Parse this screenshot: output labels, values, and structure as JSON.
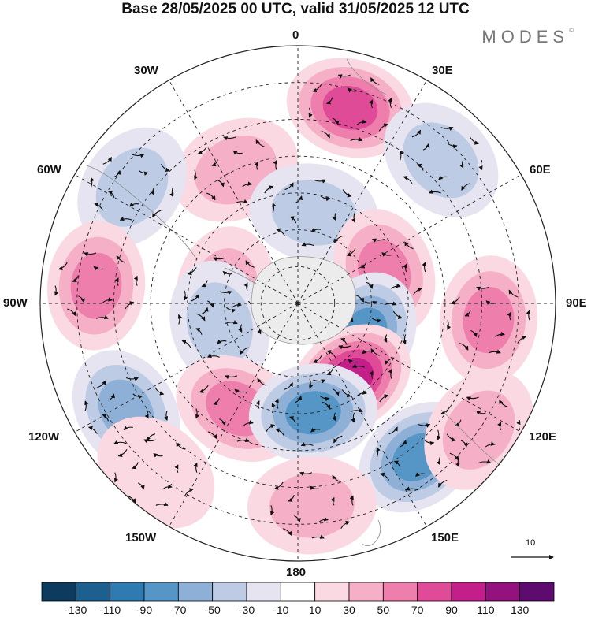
{
  "title": "Base 28/05/2025 00 UTC, valid 31/05/2025 12 UTC",
  "logo_text": "MODES",
  "logo_mark": "©",
  "longitude_labels": {
    "lon_0": "0",
    "lon_30e": "30E",
    "lon_60e": "60E",
    "lon_90e": "90E",
    "lon_120e": "120E",
    "lon_150e": "150E",
    "lon_180": "180",
    "lon_150w": "150W",
    "lon_120w": "120W",
    "lon_90w": "90W",
    "lon_60w": "60W",
    "lon_30w": "30W"
  },
  "reference_vector": {
    "label": "10",
    "value": 10
  },
  "colorbar": {
    "colors": [
      "#0d3b5e",
      "#1d5f8e",
      "#2f7ab0",
      "#5596c6",
      "#8eb0d6",
      "#bdcbe4",
      "#e6e4f0",
      "#ffffff",
      "#fad9e2",
      "#f5afc6",
      "#ee7fac",
      "#e04b98",
      "#c41e8a",
      "#94127d",
      "#5d0b6f"
    ],
    "ticks": [
      "-130",
      "-110",
      "-90",
      "-70",
      "-50",
      "-30",
      "-10",
      "10",
      "30",
      "50",
      "70",
      "90",
      "110",
      "130"
    ]
  },
  "anomaly_centers": [
    {
      "lon": 15,
      "colat": 55,
      "value": 85
    },
    {
      "lon": 45,
      "colat": 55,
      "value": -50
    },
    {
      "lon": -25,
      "colat": 40,
      "value": 55
    },
    {
      "lon": 10,
      "colat": 25,
      "value": -50
    },
    {
      "lon": -55,
      "colat": 55,
      "value": -50
    },
    {
      "lon": 70,
      "colat": 25,
      "value": 70
    },
    {
      "lon": -85,
      "colat": 55,
      "value": 75
    },
    {
      "lon": -80,
      "colat": 20,
      "value": 40
    },
    {
      "lon": -105,
      "colat": 22,
      "value": -50
    },
    {
      "lon": 115,
      "colat": 20,
      "value": -85
    },
    {
      "lon": 95,
      "colat": 52,
      "value": 60
    },
    {
      "lon": 145,
      "colat": 25,
      "value": 115
    },
    {
      "lon": -150,
      "colat": 33,
      "value": 75
    },
    {
      "lon": 172,
      "colat": 30,
      "value": -95
    },
    {
      "lon": -122,
      "colat": 55,
      "value": -70
    },
    {
      "lon": 142,
      "colat": 53,
      "value": -80
    },
    {
      "lon": 176,
      "colat": 55,
      "value": 55
    },
    {
      "lon": -140,
      "colat": 60,
      "value": 35
    },
    {
      "lon": 125,
      "colat": 60,
      "value": 40
    }
  ]
}
